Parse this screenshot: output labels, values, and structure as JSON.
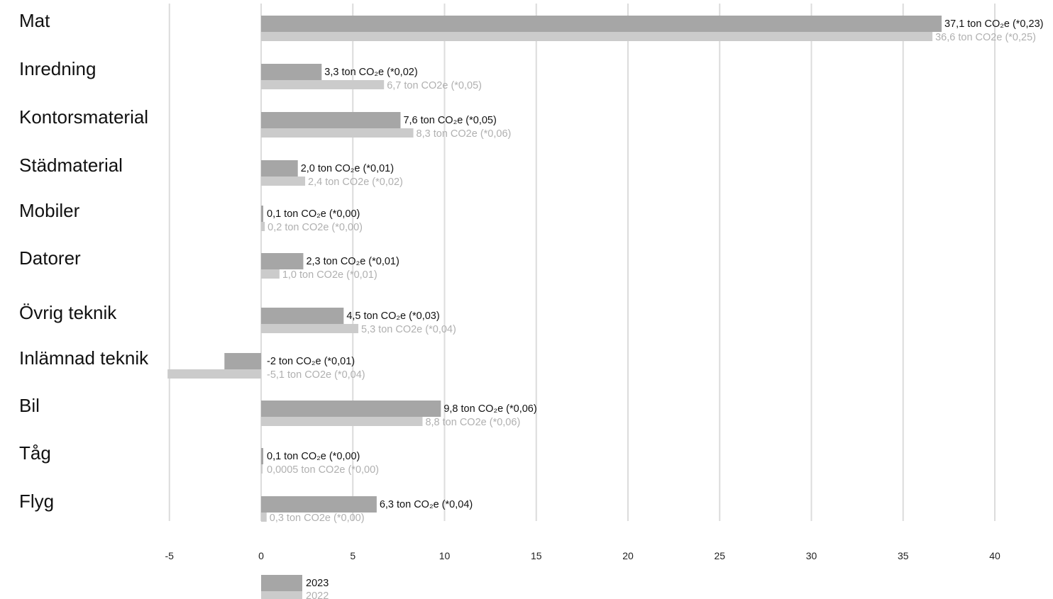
{
  "chart_data": {
    "type": "bar",
    "orientation": "horizontal",
    "categories": [
      "Mat",
      "Inredning",
      "Kontorsmaterial",
      "Städmaterial",
      "Mobiler",
      "Datorer",
      "Övrig teknik",
      "Inlämnad teknik",
      "Bil",
      "Tåg",
      "Flyg"
    ],
    "series": [
      {
        "name": "2023",
        "color": "#a6a6a6",
        "values": [
          37.1,
          3.3,
          7.6,
          2.0,
          0.1,
          2.3,
          4.5,
          -2,
          9.8,
          0.1,
          6.3
        ],
        "labels": [
          "37,1 ton CO₂e (*0,23)",
          "3,3 ton CO₂e (*0,02)",
          "7,6 ton CO₂e (*0,05)",
          "2,0 ton CO₂e (*0,01)",
          "0,1 ton CO₂e (*0,00)",
          "2,3 ton CO₂e (*0,01)",
          "4,5 ton CO₂e (*0,03)",
          "-2 ton CO₂e (*0,01)",
          "9,8 ton CO₂e (*0,06)",
          "0,1 ton CO₂e (*0,00)",
          "6,3 ton CO₂e (*0,04)"
        ]
      },
      {
        "name": "2022",
        "color": "#cbcbcb",
        "values": [
          36.6,
          6.7,
          8.3,
          2.4,
          0.2,
          1.0,
          5.3,
          -5.1,
          8.8,
          0.0005,
          0.3
        ],
        "labels": [
          "36,6 ton CO2e (*0,25)",
          "6,7 ton CO2e (*0,05)",
          "8,3 ton CO2e (*0,06)",
          "2,4 ton CO2e (*0,02)",
          "0,2 ton CO2e (*0,00)",
          "1,0 ton CO2e (*0,01)",
          "5,3 ton CO2e (*0,04)",
          "-5,1 ton CO2e (*0,04)",
          "8,8 ton CO2e (*0,06)",
          "0,0005 ton CO2e (*0,00)",
          "0,3 ton CO2e (*0,00)"
        ]
      }
    ],
    "xticks": [
      -5,
      0,
      5,
      10,
      15,
      20,
      25,
      30,
      35,
      40
    ],
    "xlim": [
      -5,
      42
    ],
    "grid": true,
    "legend": "bottom-left"
  }
}
